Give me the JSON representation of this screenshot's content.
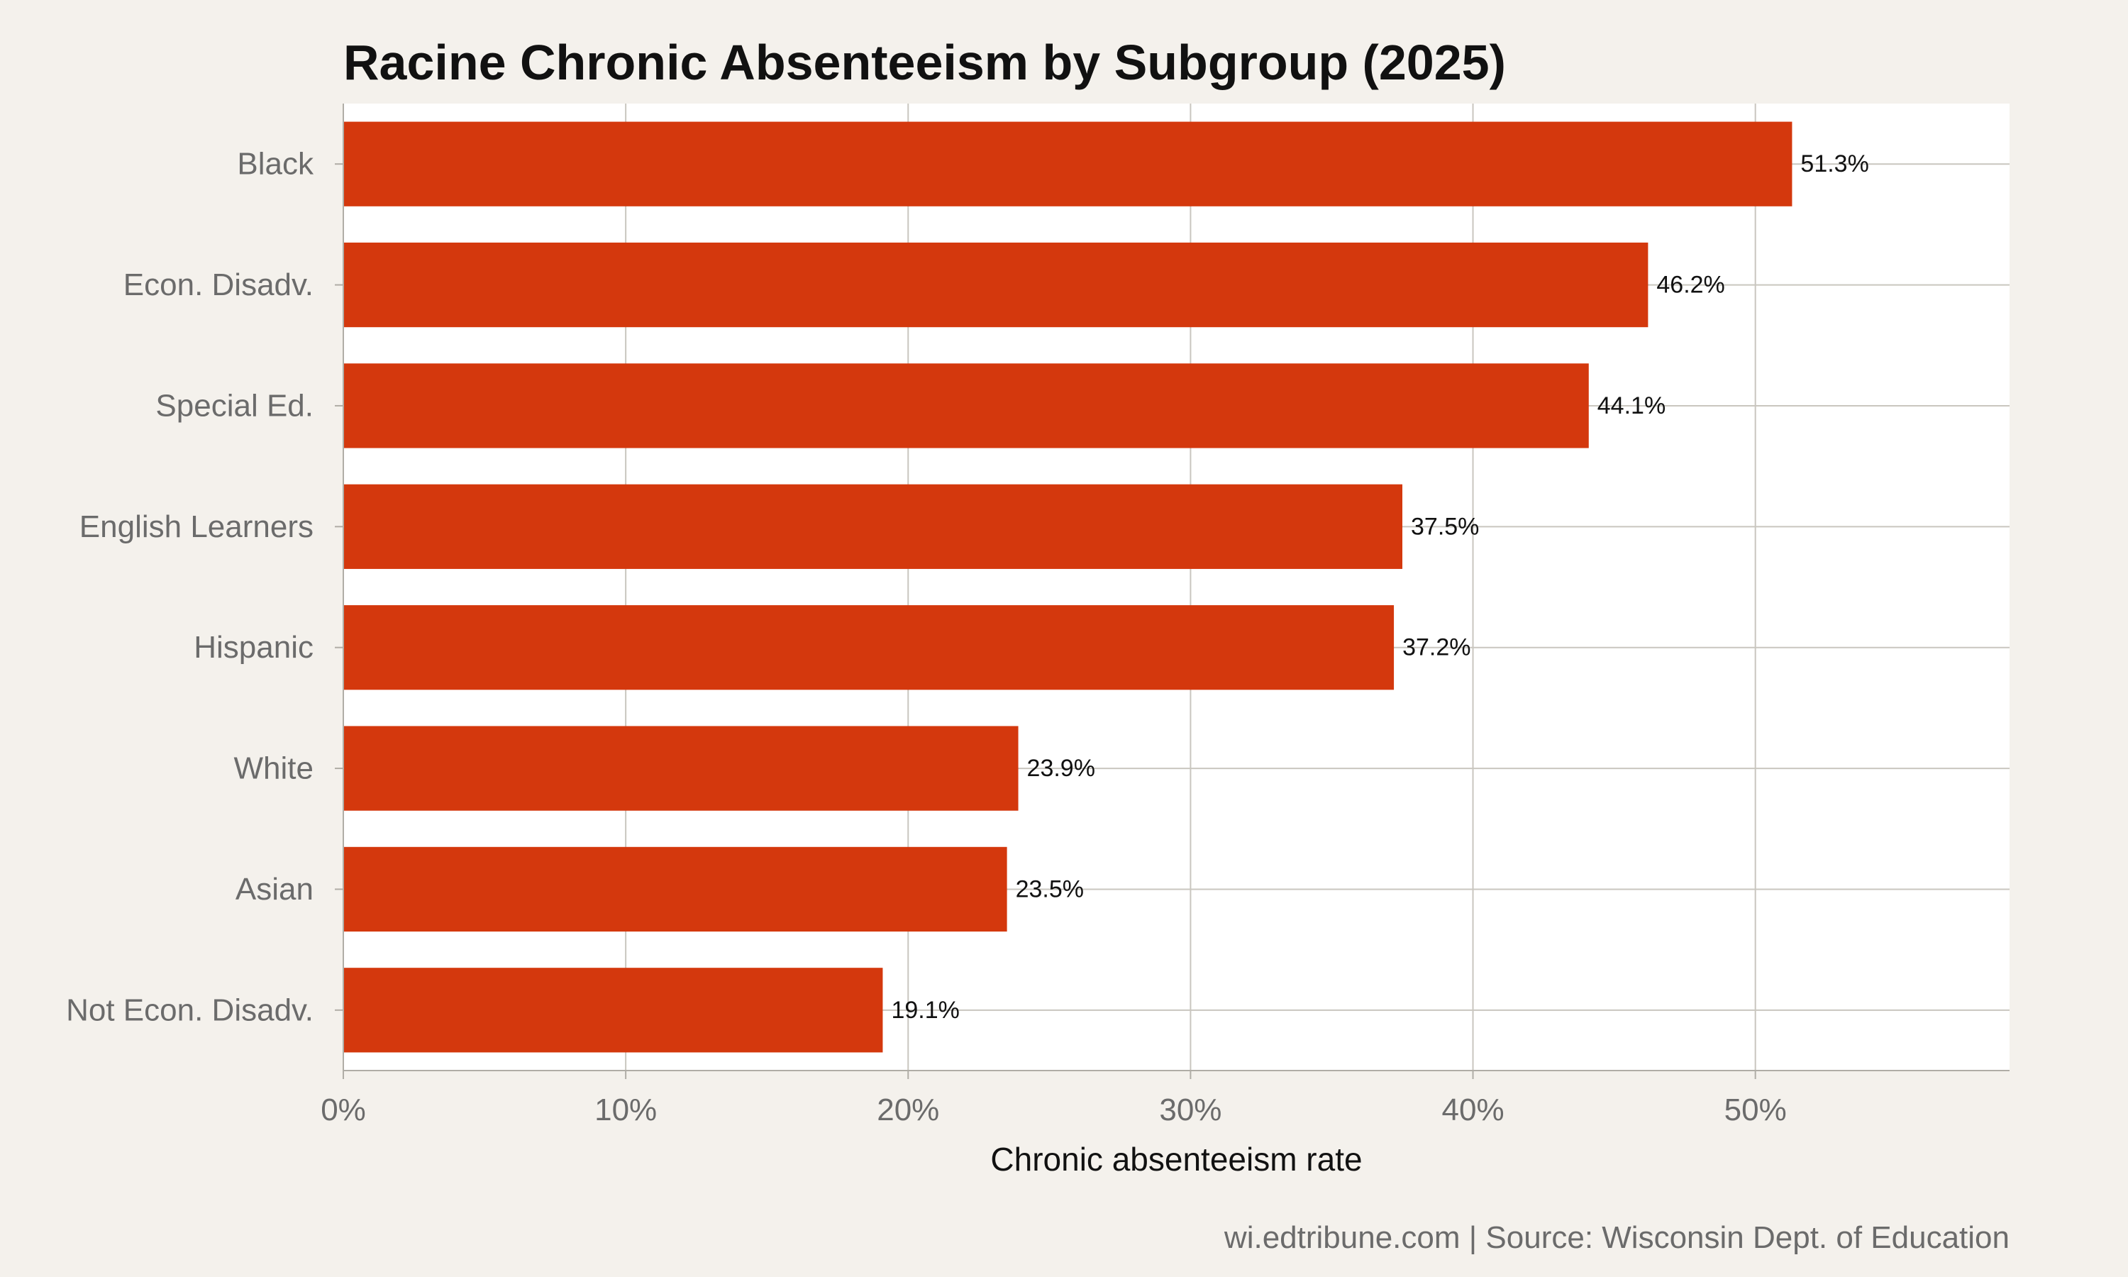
{
  "chart_data": {
    "type": "bar",
    "orientation": "horizontal",
    "title": "Racine Chronic Absenteeism by Subgroup (2025)",
    "xlabel": "Chronic absenteeism rate",
    "ylabel": "",
    "categories": [
      "Black",
      "Econ. Disadv.",
      "Special Ed.",
      "English Learners",
      "Hispanic",
      "White",
      "Asian",
      "Not Econ. Disadv."
    ],
    "values": [
      51.3,
      46.2,
      44.1,
      37.5,
      37.2,
      23.9,
      23.5,
      19.1
    ],
    "value_labels": [
      "51.3%",
      "46.2%",
      "44.1%",
      "37.5%",
      "37.2%",
      "23.9%",
      "23.5%",
      "19.1%"
    ],
    "xlim": [
      0,
      59
    ],
    "x_ticks": [
      0,
      10,
      20,
      30,
      40,
      50
    ],
    "x_tick_labels": [
      "0%",
      "10%",
      "20%",
      "30%",
      "40%",
      "50%"
    ],
    "grid": true,
    "legend": "none",
    "caption": "wi.edtribune.com | Source: Wisconsin Dept. of Education",
    "colors": {
      "bar": "#d4380d",
      "panel": "#ffffff",
      "background": "#f4f1ec",
      "grid": "#c9c6bf",
      "axis": "#b0ada6"
    }
  }
}
